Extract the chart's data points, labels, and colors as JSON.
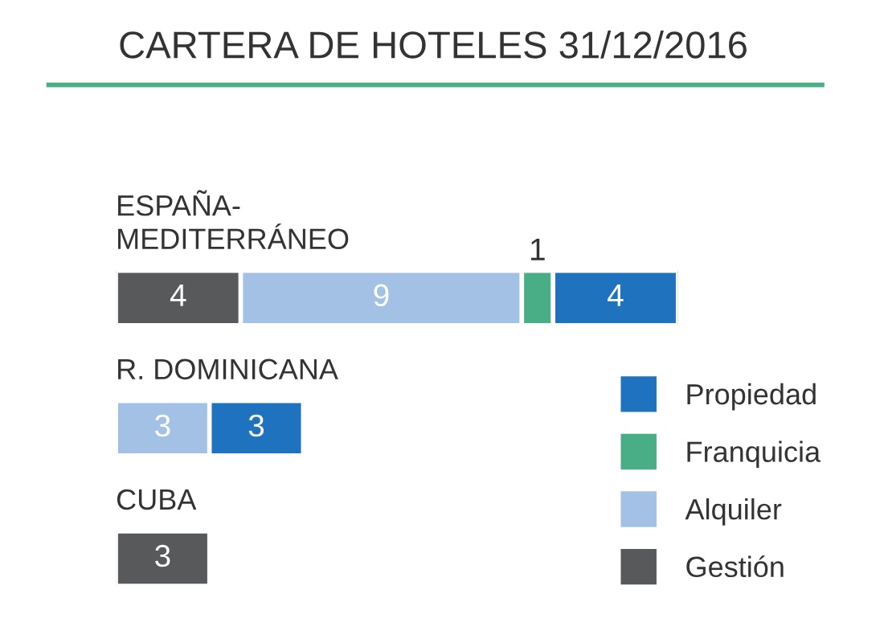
{
  "chart_data": {
    "type": "bar",
    "orientation": "horizontal",
    "stacked": true,
    "title": "CARTERA DE HOTELES 31/12/2016",
    "categories": [
      "ESPAÑA-\nMEDITERRÁNEO",
      "R. DOMINICANA",
      "CUBA"
    ],
    "series": [
      {
        "name": "Gestión",
        "color": "#58595b",
        "values": [
          4,
          null,
          3
        ]
      },
      {
        "name": "Alquiler",
        "color": "#a3c1e4",
        "values": [
          9,
          3,
          null
        ]
      },
      {
        "name": "Franquicia",
        "color": "#49ad85",
        "values": [
          1,
          null,
          null
        ]
      },
      {
        "name": "Propiedad",
        "color": "#1f72bd",
        "values": [
          4,
          3,
          null
        ]
      }
    ],
    "data_labels": true,
    "legend": "bottom right"
  }
}
